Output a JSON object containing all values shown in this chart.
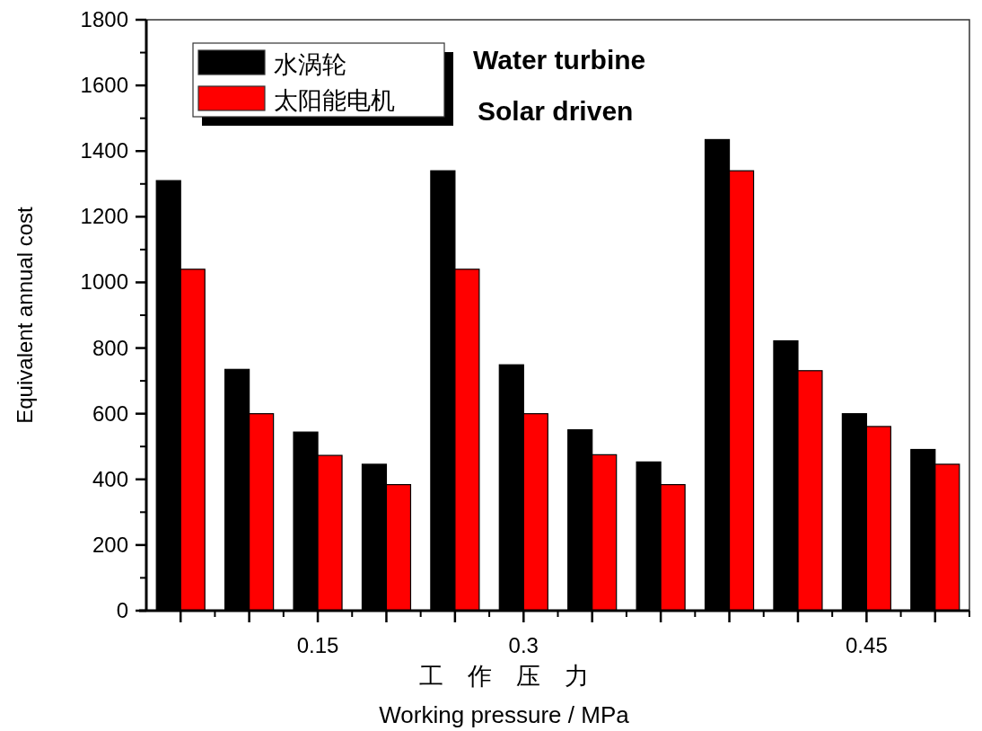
{
  "chart_data": {
    "type": "bar",
    "categories": [
      null,
      null,
      "0.15",
      null,
      null,
      "0.3",
      null,
      null,
      null,
      null,
      "0.45",
      null
    ],
    "series": [
      {
        "name": "水涡轮",
        "color": "#000000",
        "values": [
          1310,
          735,
          544,
          446,
          1340,
          749,
          551,
          453,
          1435,
          822,
          600,
          491
        ]
      },
      {
        "name": "太阳能电机",
        "color": "#ff0000",
        "values": [
          1040,
          600,
          473,
          384,
          1040,
          600,
          475,
          384,
          1340,
          731,
          561,
          446
        ]
      }
    ],
    "ylim": [
      0,
      1800
    ],
    "yticks": [
      0,
      200,
      400,
      600,
      800,
      1000,
      1200,
      1400,
      1600,
      1800
    ],
    "ylabel": "Equivalent annual cost",
    "xlabel": "工　作　压　力",
    "annotations": [
      "Water turbine",
      "Solar driven",
      "Working pressure / MPa"
    ],
    "legend": "top left"
  }
}
